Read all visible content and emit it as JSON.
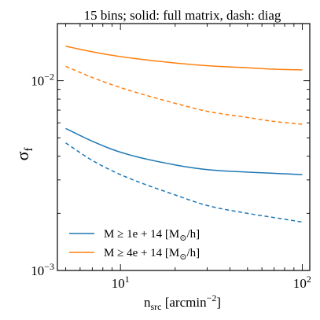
{
  "chart_data": {
    "type": "line",
    "title": "15 bins; solid: full matrix, dash: diag",
    "xlabel": "n",
    "xlabel_sub": "src",
    "xlabel_unit_open": " [arcmin",
    "xlabel_unit_exp": "−2",
    "xlabel_unit_close": "]",
    "ylabel": "σ",
    "ylabel_sub": "f",
    "xscale": "log",
    "yscale": "log",
    "xlim": [
      4.5,
      110
    ],
    "ylim": [
      0.001,
      0.02
    ],
    "x_ticks": [
      {
        "value": 10,
        "base": "10",
        "exp": "1"
      },
      {
        "value": 100,
        "base": "10",
        "exp": "2"
      }
    ],
    "y_ticks": [
      {
        "value": 0.001,
        "base": "10",
        "exp": "−3"
      },
      {
        "value": 0.01,
        "base": "10",
        "exp": "−2"
      }
    ],
    "grid": false,
    "legend_position": "lower-left",
    "legend": [
      {
        "label": "M ≥ 1e + 14 [M",
        "unit_sub": "⊙",
        "unit_tail": "/h]",
        "color": "#1f77b4"
      },
      {
        "label": "M ≥ 4e + 14 [M",
        "unit_sub": "⊙",
        "unit_tail": "/h]",
        "color": "#ff7f0e"
      }
    ],
    "series": [
      {
        "group": "M ≥ 1e + 14",
        "kind": "full matrix",
        "style": "solid",
        "color": "#1f77b4",
        "x": [
          5,
          7,
          10,
          20,
          30,
          50,
          70,
          100
        ],
        "y": [
          0.0056,
          0.0048,
          0.0042,
          0.0036,
          0.0034,
          0.0033,
          0.00325,
          0.0032
        ]
      },
      {
        "group": "M ≥ 1e + 14",
        "kind": "diag",
        "style": "dashed",
        "color": "#1f77b4",
        "x": [
          5,
          7,
          10,
          20,
          30,
          50,
          70,
          100
        ],
        "y": [
          0.0047,
          0.0038,
          0.0032,
          0.0025,
          0.0022,
          0.002,
          0.0019,
          0.0018
        ]
      },
      {
        "group": "M ≥ 4e + 14",
        "kind": "full matrix",
        "style": "solid",
        "color": "#ff7f0e",
        "x": [
          5,
          7,
          10,
          20,
          30,
          50,
          70,
          100
        ],
        "y": [
          0.0152,
          0.0142,
          0.0134,
          0.0124,
          0.012,
          0.0117,
          0.0115,
          0.0114
        ]
      },
      {
        "group": "M ≥ 4e + 14",
        "kind": "diag",
        "style": "dashed",
        "color": "#ff7f0e",
        "x": [
          5,
          7,
          10,
          20,
          30,
          50,
          70,
          100
        ],
        "y": [
          0.0119,
          0.0104,
          0.0092,
          0.0076,
          0.0069,
          0.0064,
          0.0061,
          0.0059
        ]
      }
    ]
  }
}
